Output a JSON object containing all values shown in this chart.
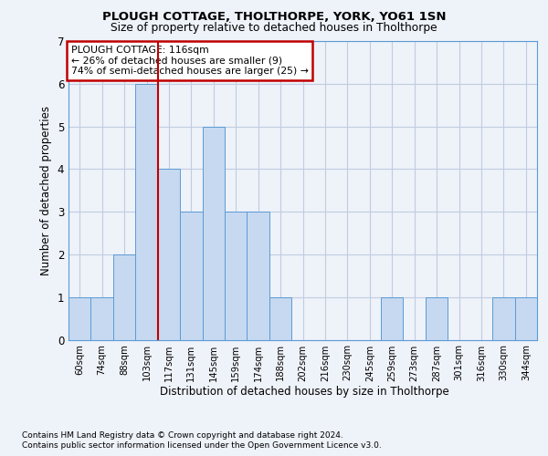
{
  "title1": "PLOUGH COTTAGE, THOLTHORPE, YORK, YO61 1SN",
  "title2": "Size of property relative to detached houses in Tholthorpe",
  "xlabel": "Distribution of detached houses by size in Tholthorpe",
  "ylabel": "Number of detached properties",
  "bin_labels": [
    "60sqm",
    "74sqm",
    "88sqm",
    "103sqm",
    "117sqm",
    "131sqm",
    "145sqm",
    "159sqm",
    "174sqm",
    "188sqm",
    "202sqm",
    "216sqm",
    "230sqm",
    "245sqm",
    "259sqm",
    "273sqm",
    "287sqm",
    "301sqm",
    "316sqm",
    "330sqm",
    "344sqm"
  ],
  "counts": [
    1,
    1,
    2,
    6,
    4,
    3,
    5,
    3,
    3,
    1,
    0,
    0,
    0,
    0,
    1,
    0,
    1,
    0,
    0,
    1,
    1
  ],
  "bar_color": "#c6d9f0",
  "bar_edge_color": "#5b9bd5",
  "vline_index": 4.0,
  "vline_color": "#c00000",
  "annotation_text": "PLOUGH COTTAGE: 116sqm\n← 26% of detached houses are smaller (9)\n74% of semi-detached houses are larger (25) →",
  "annotation_box_color": "#c00000",
  "ylim": [
    0,
    7
  ],
  "yticks": [
    0,
    1,
    2,
    3,
    4,
    5,
    6,
    7
  ],
  "footnote1": "Contains HM Land Registry data © Crown copyright and database right 2024.",
  "footnote2": "Contains public sector information licensed under the Open Government Licence v3.0.",
  "bg_color": "#eef2f9",
  "plot_bg_color": "#eef2f9",
  "grid_color": "#c0cde0"
}
